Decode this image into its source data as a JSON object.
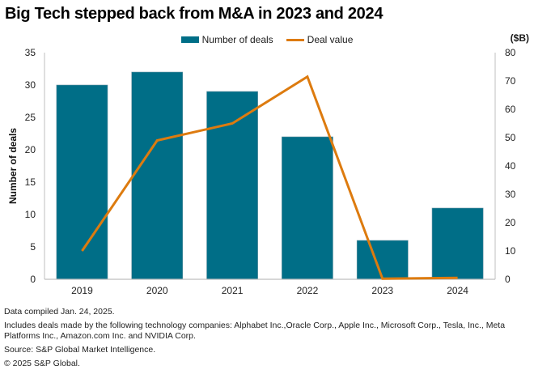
{
  "title": "Big Tech stepped back from M&A in 2023 and 2024",
  "legend": {
    "bars_label": "Number of deals",
    "line_label": "Deal value"
  },
  "right_axis_unit": "($B)",
  "notes": {
    "compiled": "Data compiled Jan. 24, 2025.",
    "includes": "Includes deals made by the following technology companies: Alphabet Inc.,Oracle Corp., Apple Inc., Microsoft Corp., Tesla, Inc., Meta Platforms Inc., Amazon.com Inc. and NVIDIA Corp.",
    "source": "Source: S&P Global Market Intelligence.",
    "copyright": "© 2025 S&P Global."
  },
  "colors": {
    "bars": "#006e87",
    "line": "#dd7b0f",
    "axis": "#bfbfbf"
  },
  "chart_data": {
    "type": "bar",
    "title": "Big Tech stepped back from M&A in 2023 and 2024",
    "categories": [
      "2019",
      "2020",
      "2021",
      "2022",
      "2023",
      "2024"
    ],
    "series": [
      {
        "name": "Number of deals",
        "type": "bar",
        "axis": "left",
        "values": [
          30,
          32,
          29,
          22,
          6,
          11
        ]
      },
      {
        "name": "Deal value",
        "type": "line",
        "axis": "right",
        "values": [
          10,
          49,
          55,
          71.5,
          0.2,
          0.5
        ]
      }
    ],
    "ylabel": "Number of deals",
    "ylabel_right": "($B)",
    "ylim": [
      0,
      35
    ],
    "ylim_right": [
      0,
      80
    ],
    "yticks": [
      0,
      5,
      10,
      15,
      20,
      25,
      30,
      35
    ],
    "yticks_right": [
      0,
      10,
      20,
      30,
      40,
      50,
      60,
      70,
      80
    ],
    "grid": false,
    "legend_position": "top-center"
  }
}
